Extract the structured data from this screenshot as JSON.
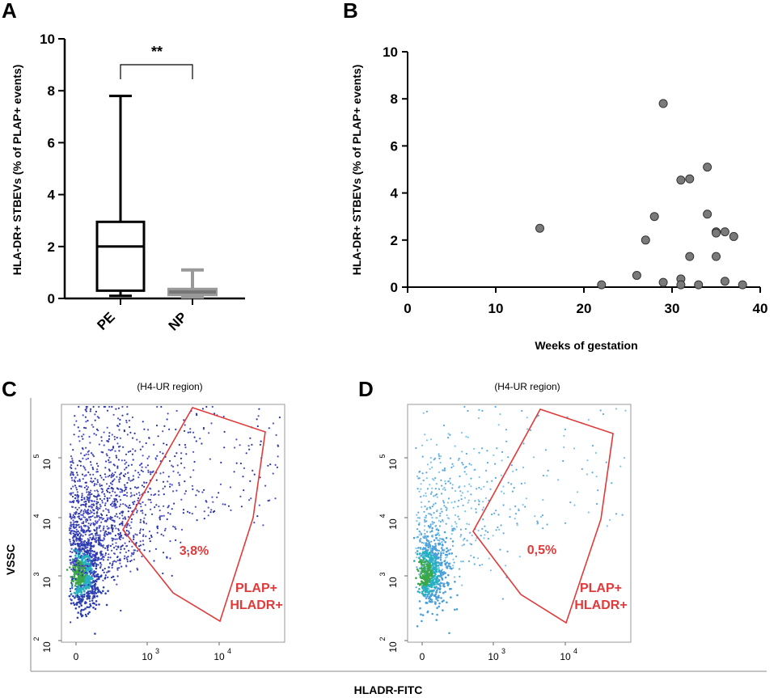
{
  "panels": {
    "a": {
      "label": "A"
    },
    "b": {
      "label": "B"
    },
    "c": {
      "label": "C"
    },
    "d": {
      "label": "D"
    }
  },
  "chart_data": [
    {
      "id": "A",
      "type": "box",
      "title": "",
      "ylabel": "HLA-DR+  STBEVs (% of PLAP+ events)",
      "ylim": [
        0,
        10
      ],
      "yticks": [
        "0",
        "2",
        "4",
        "6",
        "8",
        "10"
      ],
      "categories": [
        "PE",
        "NP"
      ],
      "boxes": [
        {
          "name": "PE",
          "min": 0.1,
          "q1": 0.3,
          "median": 2.0,
          "q3": 2.95,
          "max": 7.8,
          "color": "#000000"
        },
        {
          "name": "NP",
          "min": 0.05,
          "q1": 0.15,
          "median": 0.25,
          "q3": 0.35,
          "max": 1.1,
          "color": "#999999"
        }
      ],
      "annotation": "**"
    },
    {
      "id": "B",
      "type": "scatter",
      "xlabel": "Weeks of gestation",
      "ylabel": "HLA-DR+  STBEVs (% of PLAP+ events)",
      "xlim": [
        0,
        40
      ],
      "ylim": [
        0,
        10
      ],
      "xticks": [
        "0",
        "10",
        "20",
        "30",
        "40"
      ],
      "yticks": [
        "0",
        "2",
        "4",
        "6",
        "8",
        "10"
      ],
      "points": [
        [
          15,
          2.5
        ],
        [
          22,
          0.1
        ],
        [
          26,
          0.5
        ],
        [
          27,
          2.0
        ],
        [
          28,
          3.0
        ],
        [
          29,
          7.8
        ],
        [
          29,
          0.2
        ],
        [
          31,
          4.55
        ],
        [
          31,
          0.35
        ],
        [
          31,
          0.1
        ],
        [
          32,
          4.6
        ],
        [
          32,
          1.3
        ],
        [
          33,
          0.1
        ],
        [
          34,
          5.1
        ],
        [
          34,
          3.1
        ],
        [
          35,
          2.35
        ],
        [
          35,
          2.3
        ],
        [
          35,
          1.3
        ],
        [
          36,
          2.35
        ],
        [
          36,
          0.25
        ],
        [
          37,
          2.15
        ],
        [
          38,
          0.1
        ]
      ],
      "marker_color": "#7a7a7a"
    },
    {
      "id": "C",
      "type": "flow-density",
      "title": "(H4-UR  region)",
      "xlabel": "HLADR-FITC",
      "ylabel": "VSSC",
      "xticks": [
        "0",
        "10",
        "10"
      ],
      "xtick_exps": [
        "",
        "3",
        "4"
      ],
      "yticks": [
        "10",
        "10",
        "10",
        "10"
      ],
      "ytick_exps": [
        "2",
        "3",
        "4",
        "5"
      ],
      "gate_percent": "3,8%",
      "gate_label_1": "PLAP+",
      "gate_label_2": "HLADR+"
    },
    {
      "id": "D",
      "type": "flow-density",
      "title": "(H4-UR  region)",
      "xlabel": "HLADR-FITC",
      "ylabel": "VSSC",
      "xticks": [
        "0",
        "10",
        "10"
      ],
      "xtick_exps": [
        "",
        "3",
        "4"
      ],
      "yticks": [
        "10",
        "10",
        "10",
        "10"
      ],
      "ytick_exps": [
        "2",
        "3",
        "4",
        "5"
      ],
      "gate_percent": "0,5%",
      "gate_label_1": "PLAP+",
      "gate_label_2": "HLADR+"
    }
  ]
}
